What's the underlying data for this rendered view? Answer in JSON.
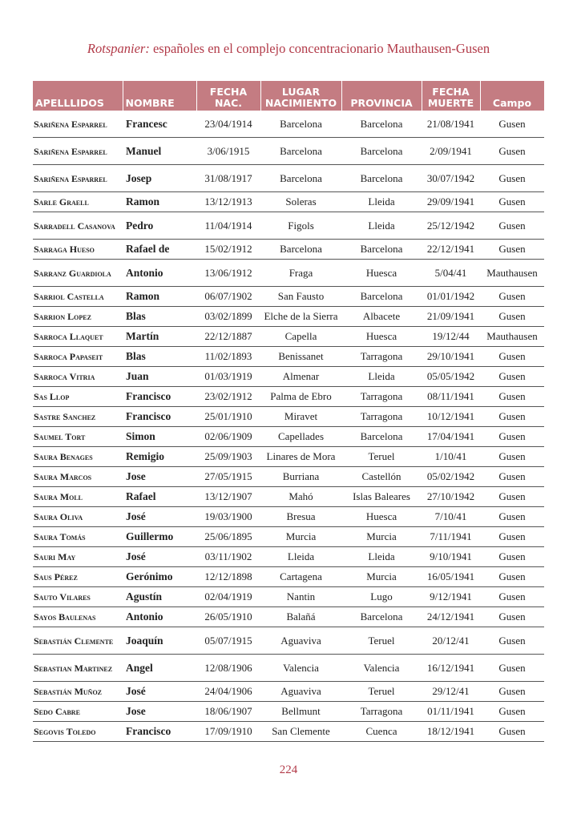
{
  "header": {
    "title_italic": "Rotspanier:",
    "title_rest": " españoles en el complejo concentracionario Mauthausen-Gusen"
  },
  "table": {
    "columns": [
      "APELLLIDOS",
      "NOMBRE",
      "FECHA NAC.",
      "LUGAR NACIMIENTO",
      "PROVINCIA",
      "FECHA MUERTE",
      "Campo"
    ],
    "rows": [
      [
        "Sariñena Esparrel",
        "Francesc",
        "23/04/1914",
        "Barcelona",
        "Barcelona",
        "21/08/1941",
        "Gusen"
      ],
      [
        "Sariñena Esparrel",
        "Manuel",
        "3/06/1915",
        "Barcelona",
        "Barcelona",
        "2/09/1941",
        "Gusen"
      ],
      [
        "Sariñena Esparrel",
        "Josep",
        "31/08/1917",
        "Barcelona",
        "Barcelona",
        "30/07/1942",
        "Gusen"
      ],
      [
        "Sarle Graell",
        "Ramon",
        "13/12/1913",
        "Soleras",
        "Lleida",
        "29/09/1941",
        "Gusen"
      ],
      [
        "Sarradell Casanova",
        "Pedro",
        "11/04/1914",
        "Figols",
        "Lleida",
        "25/12/1942",
        "Gusen"
      ],
      [
        "Sarraga Hueso",
        "Rafael de",
        "15/02/1912",
        "Barcelona",
        "Barcelona",
        "22/12/1941",
        "Gusen"
      ],
      [
        "Sarranz Guardiola",
        "Antonio",
        "13/06/1912",
        "Fraga",
        "Huesca",
        "5/04/41",
        "Mauthausen"
      ],
      [
        "Sarriol Castella",
        "Ramon",
        "06/07/1902",
        "San Fausto",
        "Barcelona",
        "01/01/1942",
        "Gusen"
      ],
      [
        "Sarrion Lopez",
        "Blas",
        "03/02/1899",
        "Elche de la Sierra",
        "Albacete",
        "21/09/1941",
        "Gusen"
      ],
      [
        "Sarroca Llaquet",
        "Martín",
        "22/12/1887",
        "Capella",
        "Huesca",
        "19/12/44",
        "Mauthausen"
      ],
      [
        "Sarroca Papaseit",
        "Blas",
        "11/02/1893",
        "Benissanet",
        "Tarragona",
        "29/10/1941",
        "Gusen"
      ],
      [
        "Sarroca Vitria",
        "Juan",
        "01/03/1919",
        "Almenar",
        "Lleida",
        "05/05/1942",
        "Gusen"
      ],
      [
        "Sas Llop",
        "Francisco",
        "23/02/1912",
        "Palma de Ebro",
        "Tarragona",
        "08/11/1941",
        "Gusen"
      ],
      [
        "Sastre Sanchez",
        "Francisco",
        "25/01/1910",
        "Miravet",
        "Tarragona",
        "10/12/1941",
        "Gusen"
      ],
      [
        "Saumel Tort",
        "Simon",
        "02/06/1909",
        "Capellades",
        "Barcelona",
        "17/04/1941",
        "Gusen"
      ],
      [
        "Saura Benages",
        "Remigio",
        "25/09/1903",
        "Linares de Mora",
        "Teruel",
        "1/10/41",
        "Gusen"
      ],
      [
        "Saura Marcos",
        "Jose",
        "27/05/1915",
        "Burriana",
        "Castellón",
        "05/02/1942",
        "Gusen"
      ],
      [
        "Saura Moll",
        "Rafael",
        "13/12/1907",
        "Mahó",
        "Islas Baleares",
        "27/10/1942",
        "Gusen"
      ],
      [
        "Saura Oliva",
        "José",
        "19/03/1900",
        "Bresua",
        "Huesca",
        "7/10/41",
        "Gusen"
      ],
      [
        "Saura Tomás",
        "Guillermo",
        "25/06/1895",
        "Murcia",
        "Murcia",
        "7/11/1941",
        "Gusen"
      ],
      [
        "Sauri May",
        "José",
        "03/11/1902",
        "Lleida",
        "Lleida",
        "9/10/1941",
        "Gusen"
      ],
      [
        "Saus Pérez",
        "Gerónimo",
        "12/12/1898",
        "Cartagena",
        "Murcia",
        "16/05/1941",
        "Gusen"
      ],
      [
        "Sauto Vilares",
        "Agustín",
        "02/04/1919",
        "Nantin",
        "Lugo",
        "9/12/1941",
        "Gusen"
      ],
      [
        "Sayos Baulenas",
        "Antonio",
        "26/05/1910",
        "Balañá",
        "Barcelona",
        "24/12/1941",
        "Gusen"
      ],
      [
        "Sebastián Clemente",
        "Joaquín",
        "05/07/1915",
        "Aguaviva",
        "Teruel",
        "20/12/41",
        "Gusen"
      ],
      [
        "Sebastian Martinez",
        "Angel",
        "12/08/1906",
        "Valencia",
        "Valencia",
        "16/12/1941",
        "Gusen"
      ],
      [
        "Sebastián Muñoz",
        "José",
        "24/04/1906",
        "Aguaviva",
        "Teruel",
        "29/12/41",
        "Gusen"
      ],
      [
        "Sedo Cabre",
        "Jose",
        "18/06/1907",
        "Bellmunt",
        "Tarragona",
        "01/11/1941",
        "Gusen"
      ],
      [
        "Segovis Toledo",
        "Francisco",
        "17/09/1910",
        "San Clemente",
        "Cuenca",
        "18/12/1941",
        "Gusen"
      ]
    ]
  },
  "footer": {
    "page_number": "224"
  },
  "colors": {
    "header_bg": "#c47c82",
    "title": "#b23a48"
  }
}
